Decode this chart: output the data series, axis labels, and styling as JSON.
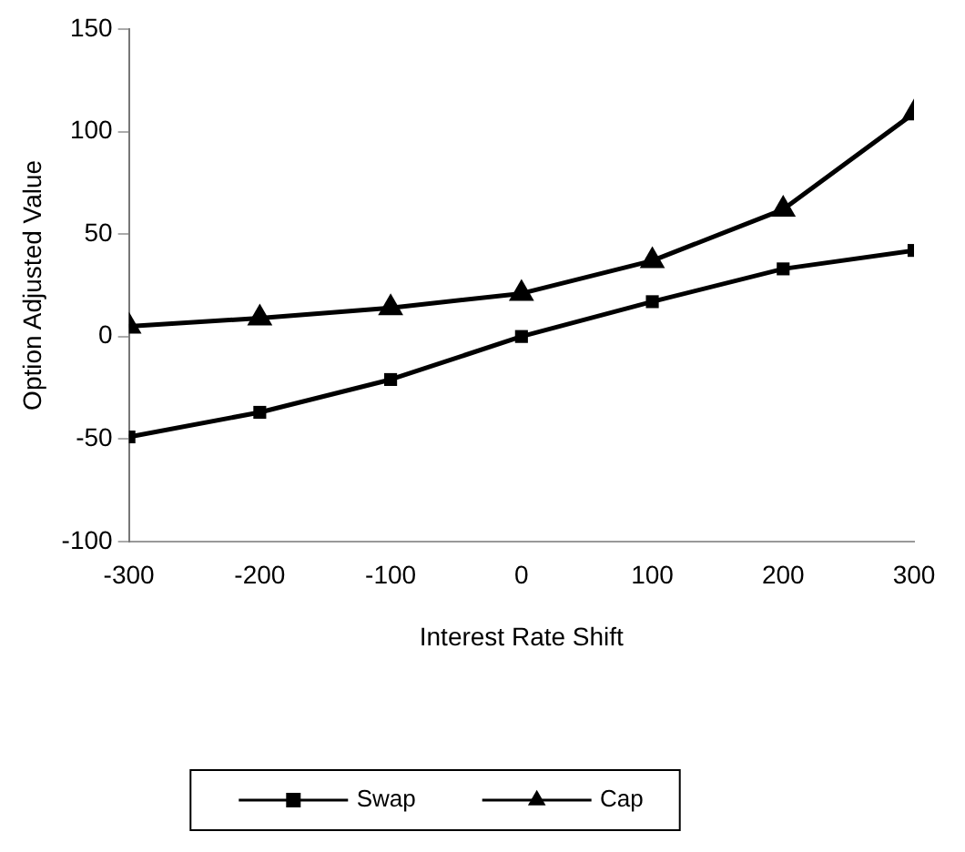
{
  "chart_data": {
    "type": "line",
    "xlabel": "Interest Rate Shift",
    "ylabel": "Option Adjusted Value",
    "x": [
      -300,
      -200,
      -100,
      0,
      100,
      200,
      300
    ],
    "series": [
      {
        "name": "Swap",
        "color": "#000000",
        "marker": "square",
        "values": [
          -49,
          -37,
          -21,
          0,
          17,
          33,
          42
        ]
      },
      {
        "name": "Cap",
        "color": "#000000",
        "marker": "triangle",
        "values": [
          5,
          9,
          14,
          21,
          37,
          62,
          109
        ]
      }
    ],
    "xlim": [
      -300,
      300
    ],
    "xticks": [
      -300,
      -200,
      -100,
      0,
      100,
      200,
      300
    ],
    "ylim": [
      -100,
      150
    ],
    "yticks": [
      -100,
      -50,
      0,
      50,
      100,
      150
    ],
    "grid": false,
    "legend": "bottom",
    "line_style": "solid"
  }
}
